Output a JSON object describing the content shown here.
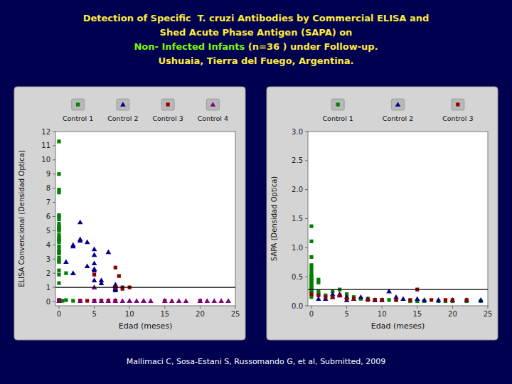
{
  "chart_data": [
    {
      "type": "scatter",
      "title": [
        "Detection of Specific  T. cruzi Antibodies by Commercial ELISA and",
        "Shed Acute Phase Antigen (SAPA) on",
        [
          "Non- Infected Infants ",
          "(n=36 ) under Follow-up."
        ],
        "Ushuaia, Tierra del Fuego, Argentina."
      ],
      "annotations": [
        "Mallimaci C, Sosa-Estani S, Russomando G, et al, Submitted, 2009"
      ],
      "xlabel": "Edad (meses)",
      "ylabel": "ELISA Convencional (Densidad Optica)",
      "xlim": [
        -0.5,
        25
      ],
      "ylim": [
        -0.3,
        12
      ],
      "xticks": [
        0,
        5,
        10,
        15,
        20,
        25
      ],
      "yticks": [
        0,
        1,
        2,
        3,
        4,
        5,
        6,
        7,
        8,
        9,
        10,
        11,
        12
      ],
      "grid": false,
      "cutoff": 1.0,
      "series": [
        {
          "name": "Control 1",
          "color": "#008000",
          "marker": "square",
          "x": [
            0,
            0,
            0,
            0,
            0,
            0,
            0,
            0,
            0,
            0,
            0,
            0,
            0,
            0,
            0,
            0,
            0,
            0,
            0,
            0,
            0,
            0,
            0,
            0,
            0,
            0,
            0,
            0,
            0,
            0.2,
            0.5,
            1,
            1,
            2
          ],
          "values": [
            11.3,
            9.0,
            7.9,
            7.7,
            6.1,
            6.0,
            5.8,
            5.5,
            5.3,
            5.2,
            5.1,
            5.0,
            4.7,
            4.5,
            4.4,
            4.3,
            4.2,
            3.9,
            3.7,
            3.5,
            3.4,
            3.1,
            2.9,
            2.8,
            2.2,
            1.9,
            1.3,
            0.05,
            0.05,
            0.05,
            0.05,
            0.1,
            2.0,
            0.05
          ]
        },
        {
          "name": "Control 2",
          "color": "#00008B",
          "marker": "triangle",
          "x": [
            1,
            2,
            2,
            2,
            2,
            3,
            3,
            3,
            4,
            4,
            5,
            5,
            5,
            5,
            5,
            5,
            6,
            6,
            7,
            8,
            8,
            8,
            8,
            8
          ],
          "values": [
            2.8,
            4.0,
            3.9,
            2.0,
            2.0,
            5.6,
            4.4,
            4.3,
            4.2,
            2.5,
            3.7,
            3.3,
            2.7,
            2.3,
            2.2,
            1.5,
            1.5,
            1.3,
            3.5,
            1.2,
            1.1,
            1.0,
            0.9,
            0.8
          ]
        },
        {
          "name": "Control 3",
          "color": "#8B0000",
          "marker": "square",
          "x": [
            0,
            0,
            3,
            3,
            4,
            5,
            5,
            5,
            6,
            6,
            7,
            7,
            8,
            8,
            8,
            8,
            8,
            8.5,
            9,
            9,
            10,
            15,
            20
          ],
          "values": [
            0.1,
            0.1,
            0.05,
            0.05,
            0.05,
            0.05,
            0.05,
            1.9,
            0.05,
            0.05,
            0.05,
            0.05,
            2.4,
            1.0,
            0.05,
            0.05,
            0.05,
            1.8,
            1.0,
            0.9,
            1.0,
            0.05,
            0.05
          ]
        },
        {
          "name": "Control 4",
          "color": "#800080",
          "marker": "triangle",
          "x": [
            0,
            3,
            5,
            5,
            5,
            6,
            7,
            8,
            8,
            9,
            10,
            10,
            11,
            12,
            12,
            13,
            15,
            15,
            16,
            17,
            18,
            20,
            20,
            21,
            22,
            23,
            24
          ],
          "values": [
            0.05,
            0.05,
            0.05,
            1.0,
            1.0,
            0.05,
            0.05,
            0.05,
            0.05,
            0.05,
            0.05,
            0.05,
            0.05,
            0.05,
            0.05,
            0.05,
            0.05,
            0.05,
            0.05,
            0.05,
            0.05,
            0.05,
            0.05,
            0.05,
            0.05,
            0.05,
            0.05
          ]
        }
      ]
    },
    {
      "type": "scatter",
      "xlabel": "Edad (meses)",
      "ylabel": "SAPA (Densidad Optica)",
      "xlim": [
        -0.5,
        25
      ],
      "ylim": [
        0.0,
        3.0
      ],
      "xticks": [
        0,
        5,
        10,
        15,
        20,
        25
      ],
      "yticks": [
        {
          "value": 0.0,
          "label": "0.0"
        },
        0.5,
        {
          "value": 1.0,
          "label": "1.0"
        },
        1.5,
        {
          "value": 2.0,
          "label": "2.0"
        },
        2.5,
        {
          "value": 3.0,
          "label": "3.0"
        }
      ],
      "grid": false,
      "cutoff": 0.28,
      "series": [
        {
          "name": "Control 1",
          "color": "#008000",
          "marker": "square",
          "x": [
            0,
            0,
            0,
            0,
            0,
            0,
            0,
            0,
            0,
            0,
            0,
            0,
            0,
            0,
            0,
            0,
            0,
            0,
            0,
            0,
            0,
            1,
            1,
            1,
            1,
            2,
            3,
            4,
            5,
            5,
            5,
            6,
            7,
            8,
            9,
            10,
            11,
            12,
            14,
            15,
            16,
            18,
            19,
            20,
            22,
            24
          ],
          "values": [
            1.37,
            1.11,
            0.84,
            0.7,
            0.65,
            0.6,
            0.55,
            0.52,
            0.5,
            0.48,
            0.45,
            0.43,
            0.4,
            0.38,
            0.35,
            0.33,
            0.3,
            0.28,
            0.25,
            0.22,
            0.15,
            0.45,
            0.4,
            0.25,
            0.2,
            0.18,
            0.25,
            0.28,
            0.2,
            0.15,
            0.1,
            0.15,
            0.12,
            0.12,
            0.1,
            0.1,
            0.1,
            0.1,
            0.08,
            0.08,
            0.08,
            0.08,
            0.08,
            0.08,
            0.08,
            0.08
          ]
        },
        {
          "name": "Control 2",
          "color": "#00008B",
          "marker": "triangle",
          "x": [
            1,
            2,
            3,
            3,
            4,
            4,
            5,
            5,
            6,
            7,
            8,
            9,
            10,
            11,
            12,
            13,
            15,
            16,
            18,
            20,
            22,
            24
          ],
          "values": [
            0.12,
            0.12,
            0.2,
            0.15,
            0.2,
            0.18,
            0.15,
            0.1,
            0.12,
            0.15,
            0.12,
            0.1,
            0.1,
            0.25,
            0.15,
            0.12,
            0.12,
            0.1,
            0.1,
            0.1,
            0.1,
            0.1
          ]
        },
        {
          "name": "Control 3",
          "color": "#8B0000",
          "marker": "square",
          "x": [
            0,
            1,
            2,
            3,
            4,
            5,
            6,
            8,
            9,
            10,
            12,
            14,
            15,
            17,
            19,
            20,
            22
          ],
          "values": [
            0.2,
            0.18,
            0.15,
            0.15,
            0.18,
            0.12,
            0.12,
            0.1,
            0.1,
            0.1,
            0.1,
            0.1,
            0.28,
            0.1,
            0.1,
            0.1,
            0.1
          ]
        }
      ]
    }
  ]
}
